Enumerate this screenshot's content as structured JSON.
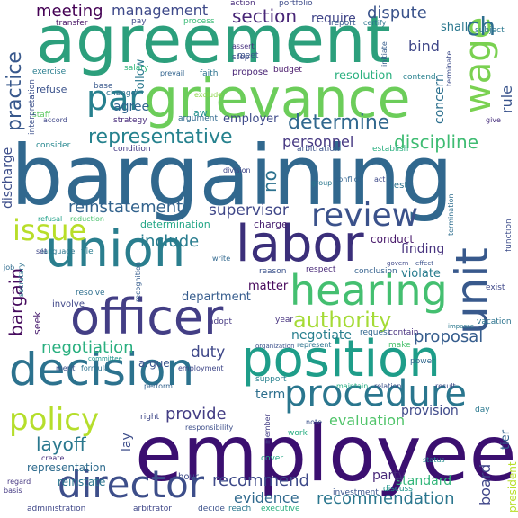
{
  "words": [
    {
      "text": "bargaining",
      "color": "#31688e"
    },
    {
      "text": "employee",
      "color": "#3b0f70"
    },
    {
      "text": "agreement",
      "color": "#2c9f7c"
    },
    {
      "text": "grievance",
      "color": "#6ccd5a"
    },
    {
      "text": "union",
      "color": "#2a7e8e"
    },
    {
      "text": "labor",
      "color": "#3b2f7a"
    },
    {
      "text": "officer",
      "color": "#433e85"
    },
    {
      "text": "position",
      "color": "#1e9d89"
    },
    {
      "text": "decision",
      "color": "#2c728e"
    },
    {
      "text": "hearing",
      "color": "#44bf70"
    },
    {
      "text": "procedure",
      "color": "#2a768e"
    },
    {
      "text": "director",
      "color": "#3d4e8a"
    },
    {
      "text": "review",
      "color": "#3b528b"
    },
    {
      "text": "unit",
      "color": "#38598c"
    },
    {
      "text": "policy",
      "color": "#b5de2b"
    },
    {
      "text": "issue",
      "color": "#b8de29"
    },
    {
      "text": "wage",
      "color": "#7ad151"
    },
    {
      "text": "par",
      "color": "#27808e"
    },
    {
      "text": "authority",
      "color": "#a5db36"
    },
    {
      "text": "representative",
      "color": "#26828e"
    },
    {
      "text": "determine",
      "color": "#31688e"
    },
    {
      "text": "discipline",
      "color": "#3fbc73"
    },
    {
      "text": "section",
      "color": "#482677"
    },
    {
      "text": "meeting",
      "color": "#440154"
    },
    {
      "text": "management",
      "color": "#3e4989"
    },
    {
      "text": "dispute",
      "color": "#3a538b"
    },
    {
      "text": "practice",
      "color": "#38588c"
    },
    {
      "text": "ch",
      "color": "#2e6e8e"
    },
    {
      "text": "personnel",
      "color": "#453781"
    },
    {
      "text": "reinstatement",
      "color": "#33638d"
    },
    {
      "text": "supervisor",
      "color": "#3f4788"
    },
    {
      "text": "include",
      "color": "#287c8e"
    },
    {
      "text": "finding",
      "color": "#46327e"
    },
    {
      "text": "bargain",
      "color": "#460b5e"
    },
    {
      "text": "layoff",
      "color": "#2a788e"
    },
    {
      "text": "recommend",
      "color": "#3e4a89"
    },
    {
      "text": "recommendation",
      "color": "#2a768e"
    },
    {
      "text": "negotiation",
      "color": "#29af7f"
    },
    {
      "text": "negotiate",
      "color": "#277f8e"
    },
    {
      "text": "duty",
      "color": "#3f4889"
    },
    {
      "text": "proposal",
      "color": "#365d8d"
    },
    {
      "text": "evaluation",
      "color": "#50c46a"
    },
    {
      "text": "provide",
      "color": "#433d84"
    },
    {
      "text": "evidence",
      "color": "#306a8e"
    },
    {
      "text": "board",
      "color": "#404688"
    },
    {
      "text": "concern",
      "color": "#2d708e"
    },
    {
      "text": "rule",
      "color": "#3a548c"
    },
    {
      "text": "require",
      "color": "#404588"
    },
    {
      "text": "resolution",
      "color": "#2ab07f"
    },
    {
      "text": "agree",
      "color": "#31668e"
    },
    {
      "text": "employer",
      "color": "#3e4a89"
    },
    {
      "text": "department",
      "color": "#365c8d"
    },
    {
      "text": "matter",
      "color": "#46085c"
    },
    {
      "text": "violate",
      "color": "#287c8e"
    },
    {
      "text": "conduct",
      "color": "#48186a"
    },
    {
      "text": "discharge",
      "color": "#3d4e8a"
    },
    {
      "text": "representation",
      "color": "#2f6c8e"
    },
    {
      "text": "reinstate",
      "color": "#2b748e"
    },
    {
      "text": "standard",
      "color": "#32b67a"
    },
    {
      "text": "term",
      "color": "#2e6f8e"
    },
    {
      "text": "party",
      "color": "#482979"
    },
    {
      "text": "provision",
      "color": "#3e4989"
    },
    {
      "text": "no",
      "color": "#2c718e"
    },
    {
      "text": "bind",
      "color": "#3f4788"
    },
    {
      "text": "shall",
      "color": "#2a778e"
    },
    {
      "text": "lay",
      "color": "#3d4d8a"
    },
    {
      "text": "determination",
      "color": "#21a585"
    },
    {
      "text": "charge",
      "color": "#482071"
    },
    {
      "text": "argue",
      "color": "#3a548c"
    },
    {
      "text": "follow",
      "color": "#2a788e"
    },
    {
      "text": "refuse",
      "color": "#3b528b"
    },
    {
      "text": "law",
      "color": "#21918c"
    },
    {
      "text": "strategy",
      "color": "#472a7a"
    },
    {
      "text": "staff",
      "color": "#5ec962"
    },
    {
      "text": "condition",
      "color": "#443983"
    },
    {
      "text": "arbitration",
      "color": "#3b528b"
    },
    {
      "text": "establish",
      "color": "#29af7f"
    },
    {
      "text": "argument",
      "color": "#30698e"
    },
    {
      "text": "propose",
      "color": "#482475"
    },
    {
      "text": "budget",
      "color": "#48186a"
    },
    {
      "text": "faith",
      "color": "#2c728e"
    },
    {
      "text": "step",
      "color": "#3e4a89"
    },
    {
      "text": "exercise",
      "color": "#287d8e"
    },
    {
      "text": "salary",
      "color": "#31b57b"
    },
    {
      "text": "interpretation",
      "color": "#3c508b"
    },
    {
      "text": "accord",
      "color": "#3f4788"
    },
    {
      "text": "consider",
      "color": "#24868e"
    },
    {
      "text": "base",
      "color": "#38588c"
    },
    {
      "text": "change",
      "color": "#2d708e"
    },
    {
      "text": "action",
      "color": "#472c7a"
    },
    {
      "text": "portfolio",
      "color": "#3e4c8a"
    },
    {
      "text": "transfer",
      "color": "#471365"
    },
    {
      "text": "pay",
      "color": "#3f4788"
    },
    {
      "text": "process",
      "color": "#3aba76"
    },
    {
      "text": "report",
      "color": "#38598c"
    },
    {
      "text": "certify",
      "color": "#2b748e"
    },
    {
      "text": "subject",
      "color": "#2a778e"
    },
    {
      "text": "assert",
      "color": "#46307e"
    },
    {
      "text": "meet",
      "color": "#3b528b"
    },
    {
      "text": "contend",
      "color": "#27808e"
    },
    {
      "text": "initiate",
      "color": "#365d8d"
    },
    {
      "text": "terminate",
      "color": "#3e4c8a"
    },
    {
      "text": "termination",
      "color": "#2e6e8e"
    },
    {
      "text": "exclude",
      "color": "#8bd646"
    },
    {
      "text": "prevail",
      "color": "#32648e"
    },
    {
      "text": "give",
      "color": "#472f7d"
    },
    {
      "text": "seek",
      "color": "#481c6e"
    },
    {
      "text": "involve",
      "color": "#3f4788"
    },
    {
      "text": "resolve",
      "color": "#2e6f8e"
    },
    {
      "text": "respect",
      "color": "#482878"
    },
    {
      "text": "conclusion",
      "color": "#34618d"
    },
    {
      "text": "reason",
      "color": "#3b528b"
    },
    {
      "text": "adopt",
      "color": "#453882"
    },
    {
      "text": "year",
      "color": "#46327e"
    },
    {
      "text": "request",
      "color": "#31678e"
    },
    {
      "text": "contain",
      "color": "#472f7d"
    },
    {
      "text": "make",
      "color": "#4ac16d"
    },
    {
      "text": "exist",
      "color": "#3f4889"
    },
    {
      "text": "vacation",
      "color": "#2c738e"
    },
    {
      "text": "power",
      "color": "#31688e"
    },
    {
      "text": "tier",
      "color": "#33638d"
    },
    {
      "text": "day",
      "color": "#2a788e"
    },
    {
      "text": "support",
      "color": "#27808e"
    },
    {
      "text": "hour",
      "color": "#3e4a89"
    },
    {
      "text": "cover",
      "color": "#22a785"
    },
    {
      "text": "investment",
      "color": "#3a548c"
    },
    {
      "text": "discuss",
      "color": "#1f968b"
    },
    {
      "text": "president",
      "color": "#b8de29"
    },
    {
      "text": "executive",
      "color": "#29af7f"
    },
    {
      "text": "reach",
      "color": "#2a778e"
    },
    {
      "text": "decide",
      "color": "#3b518b"
    },
    {
      "text": "arbitrator",
      "color": "#3f4788"
    },
    {
      "text": "administration",
      "color": "#3f4788"
    },
    {
      "text": "basis",
      "color": "#443983"
    },
    {
      "text": "regard",
      "color": "#453781"
    },
    {
      "text": "create",
      "color": "#46307e"
    },
    {
      "text": "right",
      "color": "#3f4788"
    },
    {
      "text": "responsibility",
      "color": "#3d4e8a"
    },
    {
      "text": "perform",
      "color": "#33638d"
    },
    {
      "text": "employment",
      "color": "#3f4788"
    },
    {
      "text": "merit",
      "color": "#3b528b"
    },
    {
      "text": "formula",
      "color": "#2c718e"
    },
    {
      "text": "committee",
      "color": "#1f948c"
    },
    {
      "text": "recognition",
      "color": "#365d8d"
    },
    {
      "text": "write",
      "color": "#31688e"
    },
    {
      "text": "language",
      "color": "#2b758e"
    },
    {
      "text": "file",
      "color": "#287c8e"
    },
    {
      "text": "refusal",
      "color": "#1fa088"
    },
    {
      "text": "reduction",
      "color": "#4ac16d"
    },
    {
      "text": "set",
      "color": "#3f4788"
    },
    {
      "text": "job",
      "color": "#2f6b8e"
    },
    {
      "text": "secretary",
      "color": "#2c728e"
    },
    {
      "text": "function",
      "color": "#3d4d8a"
    },
    {
      "text": "organization",
      "color": "#3b518b"
    },
    {
      "text": "division",
      "color": "#3f4788"
    },
    {
      "text": "work",
      "color": "#27ad81"
    },
    {
      "text": "member",
      "color": "#433e85"
    },
    {
      "text": "note",
      "color": "#3b528b"
    },
    {
      "text": "status",
      "color": "#228c8d"
    },
    {
      "text": "result",
      "color": "#3e4c8a"
    },
    {
      "text": "maintain",
      "color": "#25ab82"
    },
    {
      "text": "relation",
      "color": "#3b528b"
    },
    {
      "text": "represent",
      "color": "#2c738e"
    },
    {
      "text": "conflict",
      "color": "#32648e"
    },
    {
      "text": "act",
      "color": "#3e4a89"
    },
    {
      "text": "test",
      "color": "#2c728e"
    },
    {
      "text": "group",
      "color": "#2a778e"
    },
    {
      "text": "govern",
      "color": "#3f4788"
    },
    {
      "text": "effect",
      "color": "#3b518b"
    },
    {
      "text": "impasse",
      "color": "#2a788e"
    }
  ]
}
